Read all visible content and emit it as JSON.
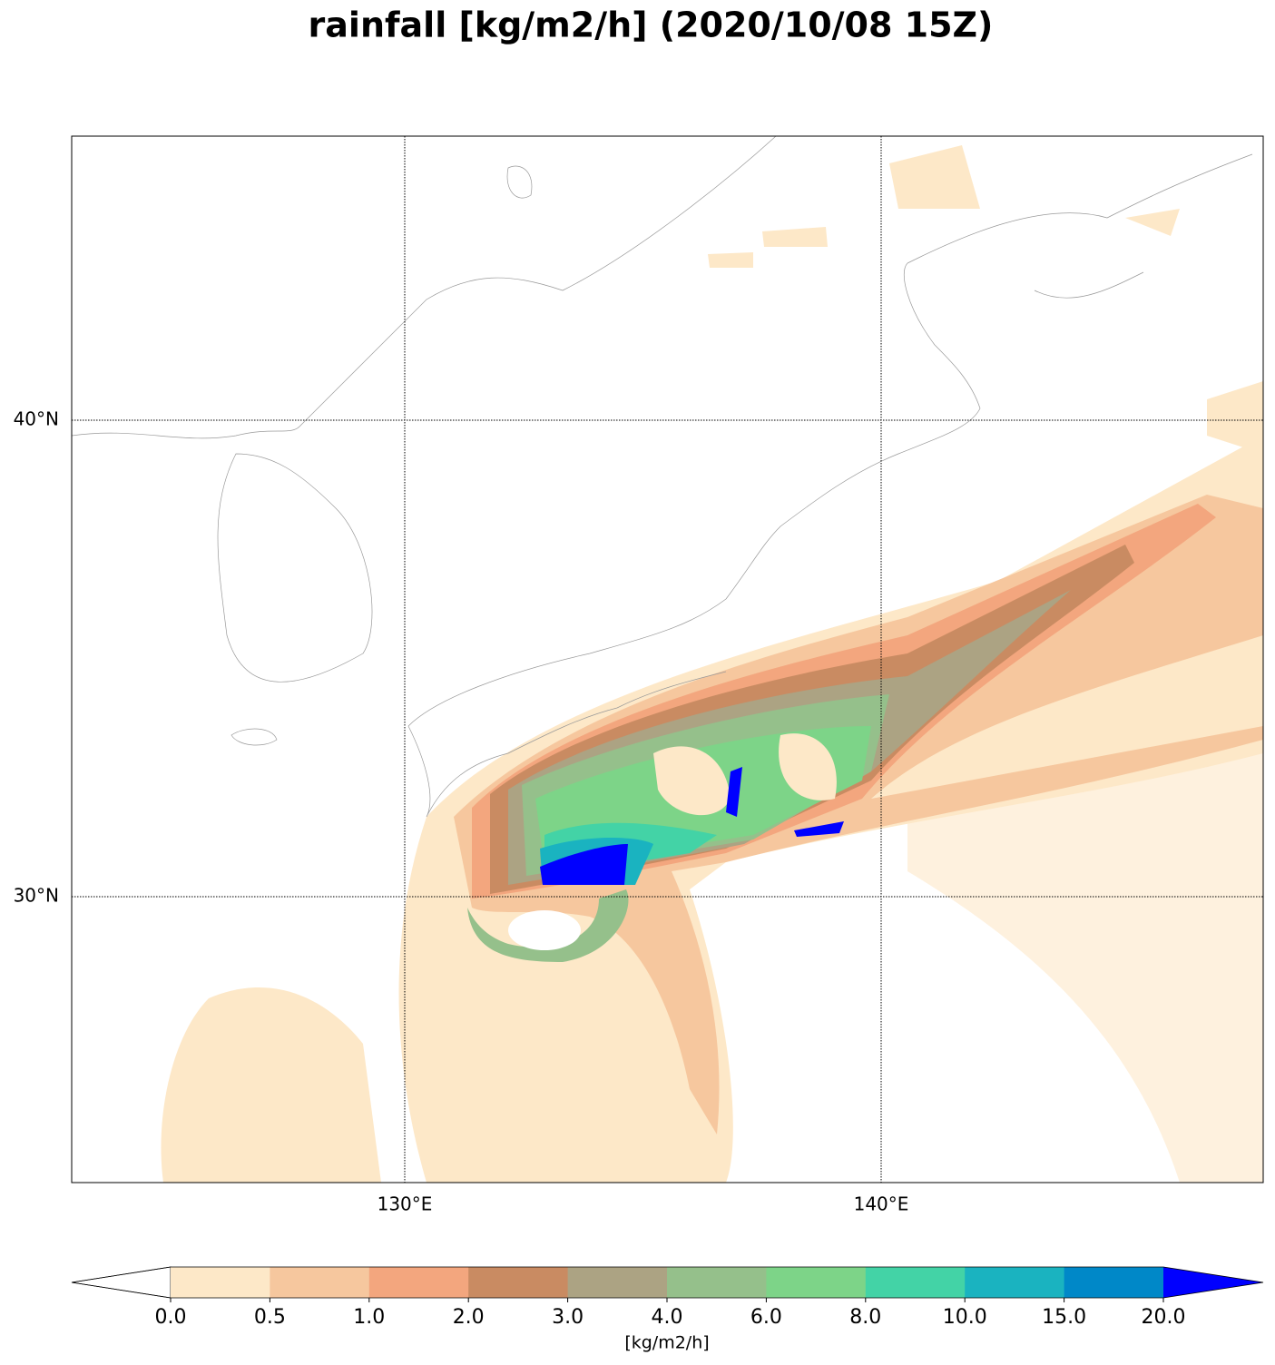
{
  "title": "rainfall [kg/m2/h] (2020/10/08 15Z)",
  "map": {
    "lat_labels": [
      "40°N",
      "30°N"
    ],
    "lon_labels": [
      "130°E",
      "140°E"
    ]
  },
  "colorbar": {
    "labels": [
      "0.0",
      "0.5",
      "1.0",
      "2.0",
      "3.0",
      "4.0",
      "6.0",
      "8.0",
      "10.0",
      "15.0",
      "20.0"
    ],
    "colors": [
      "#fde8c8",
      "#f6c79e",
      "#f3a67e",
      "#c98b62",
      "#aca383",
      "#95c08b",
      "#7dd488",
      "#43d3a6",
      "#1ab3c0",
      "#0088c8"
    ],
    "under_color": "#ffffff",
    "over_color": "#0000ff",
    "unit": "[kg/m2/h]"
  }
}
